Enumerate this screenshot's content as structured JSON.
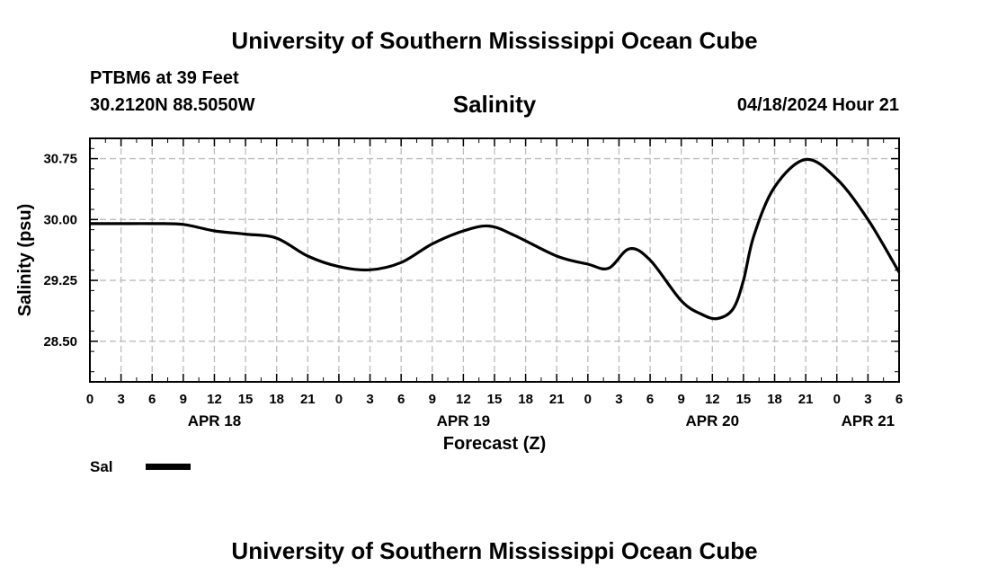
{
  "header": {
    "top_title": "University of Southern Mississippi Ocean Cube",
    "station": "PTBM6 at 39 Feet",
    "coords": "30.2120N  88.5050W",
    "plot_title": "Salinity",
    "datetime": "04/18/2024 Hour 21"
  },
  "footer": {
    "bottom_title": "University of Southern Mississippi Ocean Cube"
  },
  "legend": {
    "label": "Sal",
    "color": "#000000"
  },
  "chart_data": {
    "type": "line",
    "title": "Salinity",
    "xlabel": "Forecast (Z)",
    "ylabel": "Salinity (psu)",
    "xlim": [
      0,
      78
    ],
    "ylim": [
      28.0,
      31.0
    ],
    "yticks": [
      28.5,
      29.25,
      30.0,
      30.75
    ],
    "ytick_labels": [
      "28.50",
      "29.25",
      "30.00",
      "30.75"
    ],
    "xticks": [
      0,
      3,
      6,
      9,
      12,
      15,
      18,
      21,
      24,
      27,
      30,
      33,
      36,
      39,
      42,
      45,
      48,
      51,
      54,
      57,
      60,
      63,
      66,
      69,
      72,
      75,
      78
    ],
    "xtick_labels": [
      "0",
      "3",
      "6",
      "9",
      "12",
      "15",
      "18",
      "21",
      "0",
      "3",
      "6",
      "9",
      "12",
      "15",
      "18",
      "21",
      "0",
      "3",
      "6",
      "9",
      "12",
      "15",
      "18",
      "21",
      "0",
      "3",
      "6"
    ],
    "day_labels": [
      {
        "x": 12,
        "label": "APR 18"
      },
      {
        "x": 36,
        "label": "APR 19"
      },
      {
        "x": 60,
        "label": "APR 20"
      },
      {
        "x": 75,
        "label": "APR 21"
      }
    ],
    "grid": true,
    "series": [
      {
        "name": "Sal",
        "x": [
          0,
          3,
          6,
          9,
          12,
          15,
          18,
          21,
          24,
          27,
          30,
          33,
          36,
          38.5,
          41,
          45,
          48,
          50,
          52,
          54,
          57,
          59,
          60.5,
          62,
          63,
          64,
          66,
          69,
          72,
          75,
          78
        ],
        "values": [
          29.95,
          29.95,
          29.95,
          29.94,
          29.86,
          29.82,
          29.77,
          29.55,
          29.42,
          29.38,
          29.47,
          29.7,
          29.86,
          29.92,
          29.8,
          29.55,
          29.45,
          29.4,
          29.64,
          29.5,
          29.0,
          28.83,
          28.78,
          28.9,
          29.25,
          29.8,
          30.4,
          30.74,
          30.5,
          30.0,
          29.35
        ]
      }
    ]
  }
}
